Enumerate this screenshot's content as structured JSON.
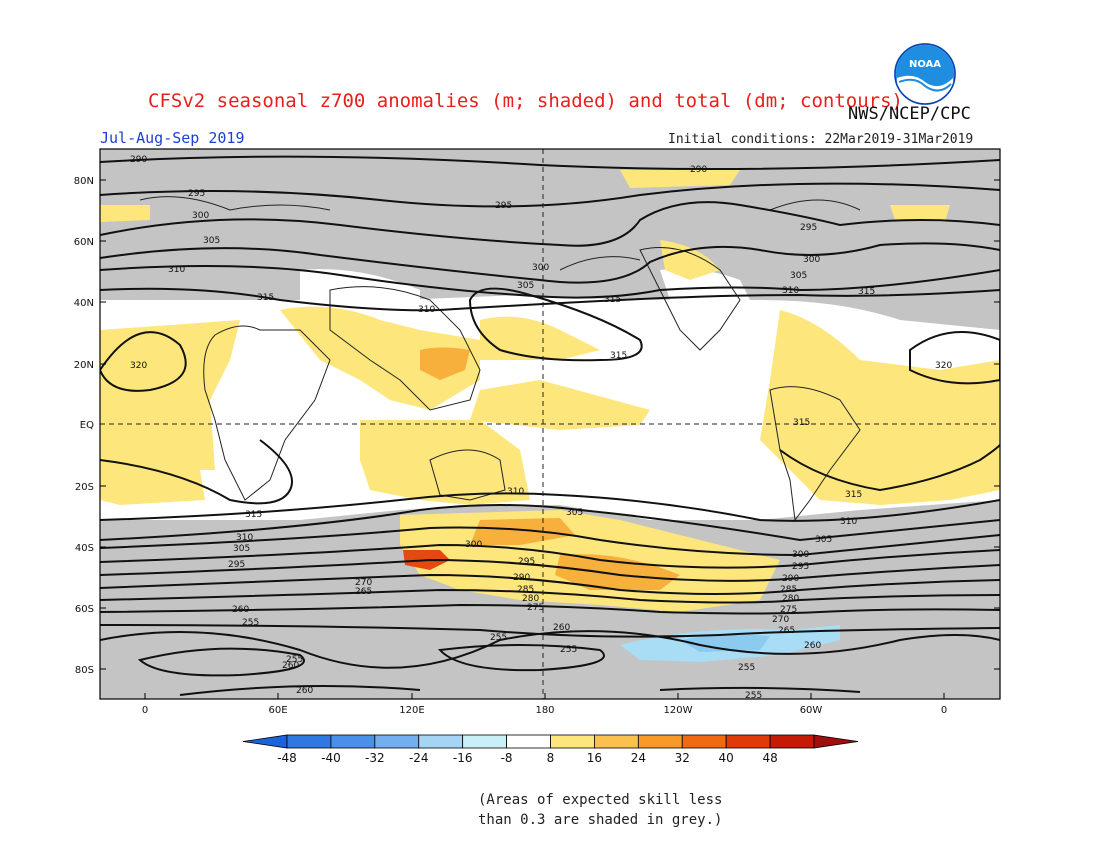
{
  "title": "CFSv2 seasonal z700 anomalies (m; shaded) and total (dm; contours)",
  "agency": "NWS/NCEP/CPC",
  "logo_text": "NOAA",
  "season": "Jul-Aug-Sep 2019",
  "initial_conditions": "Initial conditions: 22Mar2019-31Mar2019",
  "lat_labels": [
    "80N",
    "60N",
    "40N",
    "20N",
    "EQ",
    "20S",
    "40S",
    "60S",
    "80S"
  ],
  "lon_labels": [
    "0",
    "60E",
    "120E",
    "180",
    "120W",
    "60W",
    "0"
  ],
  "colorbar": {
    "labels": [
      "-48",
      "-40",
      "-32",
      "-24",
      "-16",
      "-8",
      "8",
      "16",
      "24",
      "32",
      "40",
      "48"
    ],
    "colors": [
      "#1c62d8",
      "#2f78e2",
      "#4a8fe8",
      "#72aef0",
      "#a6d4f5",
      "#c8f0f6",
      "#ffffff",
      "#fde67c",
      "#fbc14e",
      "#f89a2a",
      "#f06a12",
      "#e03a08",
      "#c41a06",
      "#a00e0e"
    ]
  },
  "anomaly_colors": {
    "grey": "#c4c4c4",
    "yellow": "#fde67c",
    "orange": "#f7b03c",
    "deep_orange": "#f07818",
    "red": "#e24a10",
    "light_blue": "#a9dcf5",
    "blue": "#8ccaf0"
  },
  "contour_labels": [
    "290",
    "295",
    "300",
    "305",
    "310",
    "315",
    "320",
    "255",
    "260",
    "265",
    "270",
    "275",
    "280",
    "285"
  ],
  "note_line1": "(Areas of expected skill less",
  "note_line2": "than 0.3 are shaded in grey.)"
}
